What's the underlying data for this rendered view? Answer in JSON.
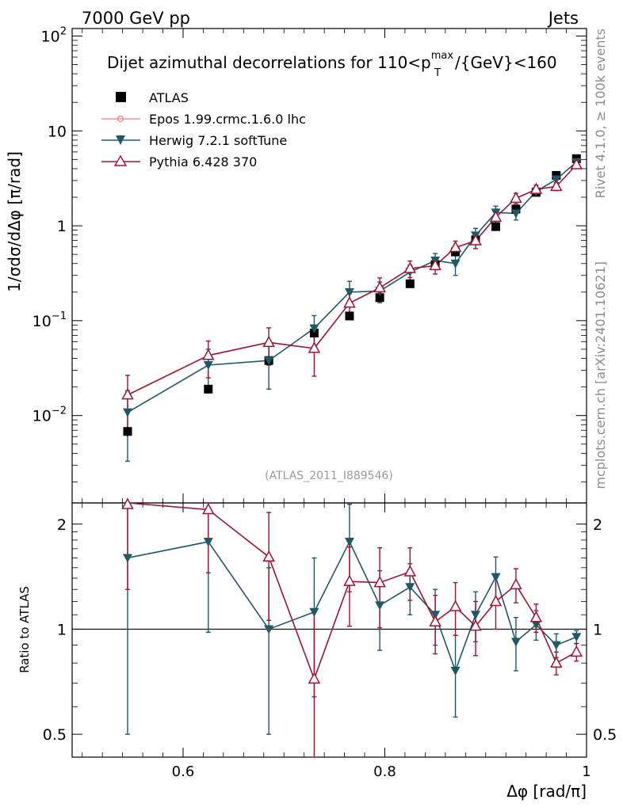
{
  "header": {
    "left": "7000 GeV pp",
    "right": "Jets"
  },
  "side_labels": {
    "rivet": "Rivet 4.1.0, ≥ 100k events",
    "mcplots": "mcplots.cern.ch [arXiv:2401.10621]"
  },
  "chart_data": {
    "type": "scatter",
    "title": "Dijet azimuthal decorrelations for 110<p_T^max/{GeV}<160",
    "title_main": "Dijet azimuthal decorrelations for 110<p",
    "title_sup": "max",
    "title_sub": "T",
    "title_rest": "/{GeV}<160",
    "analysis_label": "(ATLAS_2011_I889546)",
    "xlabel": "Δφ [rad/π]",
    "ylabel": "1/σdσ/dΔφ [π/rad]",
    "ratio_ylabel": "Ratio to ATLAS",
    "xlim": [
      0.49,
      1.0
    ],
    "ylim": [
      0.0012,
      120
    ],
    "yscale": "log",
    "ratio_ylim": [
      0.43,
      2.3
    ],
    "ratio_yscale": "log",
    "x_ticks": [
      "0.6",
      "0.8",
      "1"
    ],
    "x_tick_values": [
      0.6,
      0.8,
      1.0
    ],
    "y_tick_values": [
      0.01,
      0.1,
      1,
      10,
      100
    ],
    "y_tick_labels": [
      {
        "base": "10",
        "sup": "−2"
      },
      {
        "base": "10",
        "sup": "−1"
      },
      {
        "base": "1",
        "sup": ""
      },
      {
        "base": "10",
        "sup": ""
      },
      {
        "base": "10",
        "sup": "2"
      }
    ],
    "ratio_tick_values": [
      0.5,
      1,
      2
    ],
    "ratio_tick_labels": [
      "0.5",
      "1",
      "2"
    ],
    "legend_position": "top-left",
    "x": [
      0.545,
      0.625,
      0.685,
      0.73,
      0.765,
      0.795,
      0.825,
      0.85,
      0.87,
      0.89,
      0.91,
      0.93,
      0.95,
      0.97,
      0.99
    ],
    "series": [
      {
        "name": "ATLAS",
        "marker": "filled-square",
        "color": "#000000",
        "line": false,
        "values": [
          0.0068,
          0.019,
          0.038,
          0.074,
          0.112,
          0.175,
          0.245,
          0.39,
          0.53,
          0.71,
          0.98,
          1.5,
          2.25,
          3.4,
          5.1
        ],
        "errors": [
          0.0008,
          0.002,
          0.004,
          0.006,
          0.01,
          0.015,
          0.02,
          0.03,
          0.04,
          0.05,
          0.07,
          0.1,
          0.15,
          0.2,
          0.3
        ]
      },
      {
        "name": "Epos 1.99.crmc.1.6.0 lhc",
        "marker": "open-circle",
        "color": "#f08080",
        "line": true,
        "values": [],
        "errors": []
      },
      {
        "name": "Herwig 7.2.1 softTune",
        "marker": "filled-triangle-down",
        "color": "#1f5966",
        "line": true,
        "values": [
          0.0108,
          0.034,
          0.038,
          0.083,
          0.2,
          0.205,
          0.325,
          0.43,
          0.4,
          0.79,
          1.38,
          1.35,
          2.3,
          3.08,
          4.7
        ],
        "errors": [
          0.0075,
          0.016,
          0.019,
          0.03,
          0.06,
          0.05,
          0.06,
          0.08,
          0.1,
          0.15,
          0.23,
          0.2,
          0.2,
          0.25,
          0.3
        ],
        "ratio": [
          1.6,
          1.78,
          1.0,
          1.12,
          1.78,
          1.17,
          1.32,
          1.1,
          0.76,
          1.1,
          1.41,
          0.92,
          1.03,
          0.9,
          0.95
        ],
        "ratio_errors": [
          1.1,
          0.8,
          0.5,
          0.48,
          0.5,
          0.3,
          0.22,
          0.2,
          0.2,
          0.18,
          0.2,
          0.16,
          0.1,
          0.07,
          0.04
        ]
      },
      {
        "name": "Pythia 6.428 370",
        "marker": "open-triangle-up",
        "color": "#a01233",
        "line": true,
        "values": [
          0.0165,
          0.043,
          0.059,
          0.051,
          0.153,
          0.222,
          0.355,
          0.38,
          0.59,
          0.695,
          1.23,
          1.95,
          2.42,
          2.6,
          4.4
        ],
        "errors": [
          0.01,
          0.018,
          0.025,
          0.025,
          0.04,
          0.06,
          0.07,
          0.07,
          0.1,
          0.12,
          0.2,
          0.25,
          0.25,
          0.25,
          0.35
        ],
        "ratio": [
          2.3,
          2.2,
          1.61,
          0.72,
          1.37,
          1.36,
          1.46,
          1.05,
          1.16,
          1.02,
          1.2,
          1.34,
          1.08,
          0.8,
          0.86
        ],
        "ratio_errors": [
          1.0,
          0.75,
          0.55,
          0.4,
          0.35,
          0.35,
          0.25,
          0.2,
          0.2,
          0.18,
          0.2,
          0.15,
          0.1,
          0.06,
          0.05
        ]
      }
    ]
  }
}
